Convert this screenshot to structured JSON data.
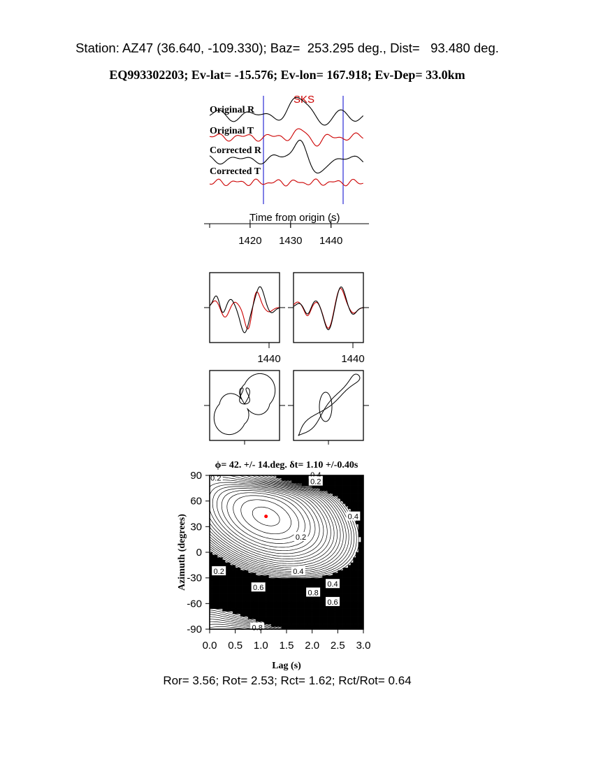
{
  "header": {
    "station_line": "Station: AZ47 (36.640, -109.330); Baz=  253.295 deg., Dist=   93.480 deg.",
    "event_line": "EQ993302203; Ev-lat= -15.576; Ev-lon= 167.918; Ev-Dep= 33.0km"
  },
  "footer": {
    "ratios_line": "Ror= 3.56; Rot= 2.53; Rct= 1.62; Rct/Rot= 0.64"
  },
  "colors": {
    "radial": "#000000",
    "transverse": "#cc0000",
    "window_marker": "#0000cc",
    "best_fit": "#ff0000"
  },
  "chart_data": [
    {
      "type": "line",
      "panel": "seismograms",
      "phase_label": "SKS",
      "trace_labels": [
        "Original R",
        "Original T",
        "Corrected R",
        "Corrected T"
      ],
      "xlabel": "Time from origin (s)",
      "xticks": [
        1420,
        1430,
        1440
      ],
      "xlim": [
        1410,
        1448
      ],
      "window": [
        1424,
        1443
      ]
    },
    {
      "type": "line",
      "panel": "particle-waveforms",
      "tick_labels": [
        "1440",
        "1440"
      ],
      "series": [
        {
          "name": "",
          "color": "#000000"
        },
        {
          "name": "",
          "color": "#cc0000"
        }
      ]
    },
    {
      "type": "line",
      "panel": "particle-motion",
      "subplots": 2
    },
    {
      "type": "heatmap",
      "panel": "grid-search",
      "title": "ϕ= 42. +/- 14.deg. δt= 1.10 +/-0.40s",
      "xlabel": "Lag (s)",
      "ylabel": "Azimuth (degrees)",
      "xlim": [
        0,
        3
      ],
      "ylim": [
        -90,
        90
      ],
      "xticks": [
        "0.0",
        "0.5",
        "1.0",
        "1.5",
        "2.0",
        "2.5",
        "3.0"
      ],
      "yticks": [
        "90",
        "60",
        "30",
        "0",
        "-30",
        "-60",
        "-90"
      ],
      "best_fit": {
        "lag": 1.1,
        "azimuth": 42
      },
      "contour_labels": [
        "0.2",
        "0.4",
        "0.2",
        "0.4",
        "0.2",
        "0.2",
        "0.4",
        "0.6",
        "0.4",
        "0.8",
        "0.6",
        "0.8"
      ]
    }
  ]
}
